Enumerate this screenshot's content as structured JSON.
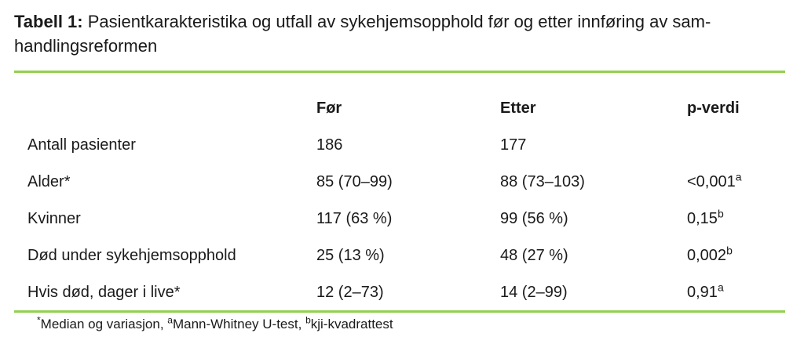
{
  "colors": {
    "rule_green": "#92D050",
    "text": "#1a1a1a",
    "background": "#ffffff"
  },
  "caption": {
    "bold": "Tabell 1:",
    "line1_rest": " Pasientkarakteristika og utfall av sykehjemsopphold før og etter innføring av sam-",
    "line2": "handlingsreformen"
  },
  "table": {
    "header": {
      "col_before": "Før",
      "col_after": "Etter",
      "col_p": "p-verdi"
    },
    "rows": [
      {
        "label": "Antall pasienter",
        "before": "186",
        "after": "177",
        "p": "",
        "p_sup": ""
      },
      {
        "label": "Alder*",
        "before": "85 (70–99)",
        "after": "88 (73–103)",
        "p": "<0,001",
        "p_sup": "a"
      },
      {
        "label": "Kvinner",
        "before": "117 (63 %)",
        "after": "99 (56 %)",
        "p": "0,15",
        "p_sup": "b"
      },
      {
        "label": "Død under sykehjemsopphold",
        "before": "25 (13 %)",
        "after": "48 (27 %)",
        "p": "0,002",
        "p_sup": "b"
      },
      {
        "label": "Hvis død, dager i live*",
        "before": "12 (2–73)",
        "after": "14 (2–99)",
        "p": "0,91",
        "p_sup": "a"
      }
    ]
  },
  "footnote": {
    "parts": [
      {
        "sup": "*",
        "text": "Median og variasjon, "
      },
      {
        "sup": "a",
        "text": "Mann-Whitney U-test, "
      },
      {
        "sup": "b",
        "text": "kji-kvadrattest"
      }
    ]
  }
}
